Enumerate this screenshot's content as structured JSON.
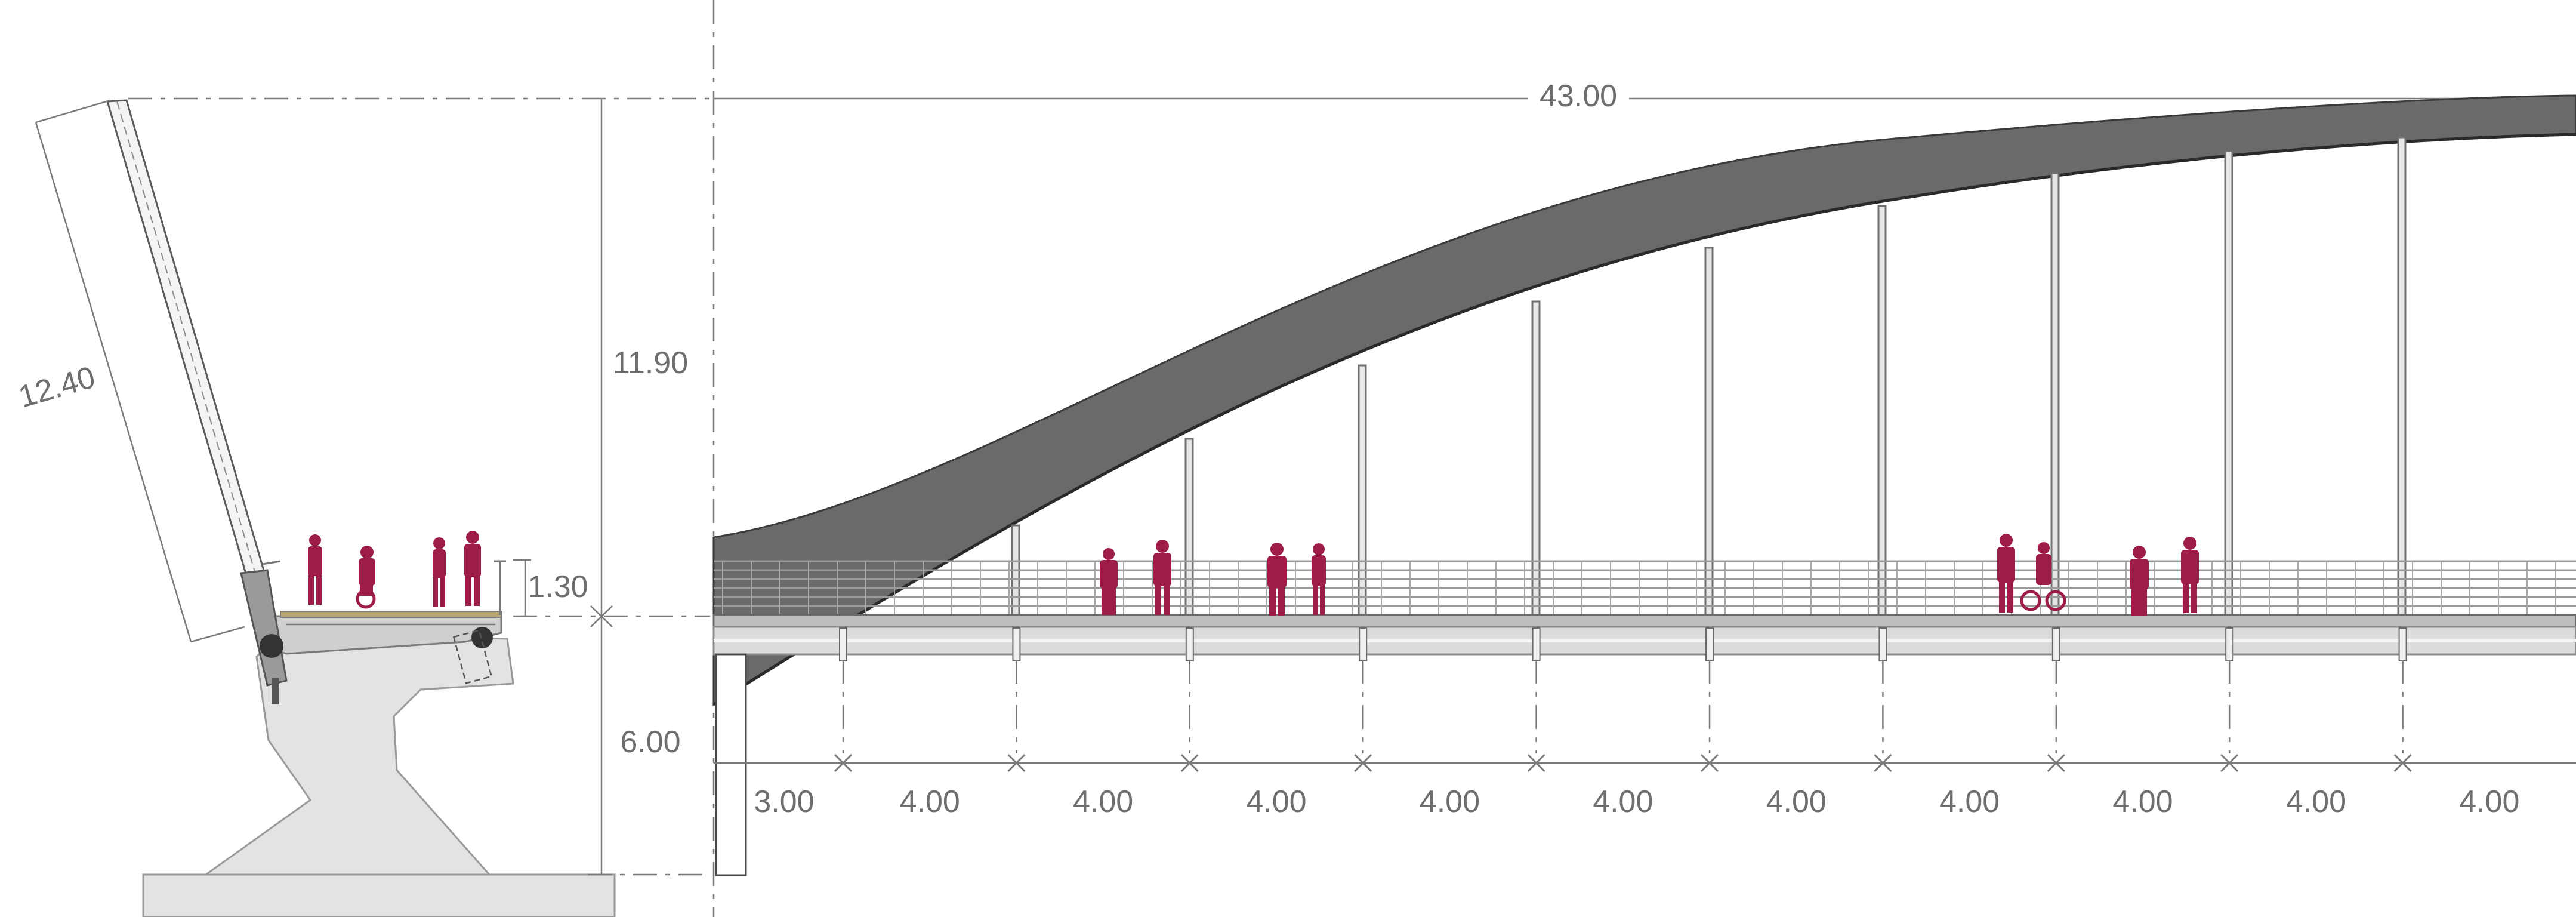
{
  "colors": {
    "arch": "#6a6a6a",
    "people": "#9e1c4a",
    "deck": "#d8d8d8",
    "abutment": "#e3e3e3",
    "dimension": "#7a7a7a"
  },
  "section": {
    "dims": {
      "mast_length": "12.40",
      "height_above_deck": "11.90",
      "railing_height": "1.30",
      "deck_clearance": "6.00"
    }
  },
  "elevation": {
    "span_label": "43.00",
    "first_bay": "3.00",
    "bays": [
      "4.00",
      "4.00",
      "4.00",
      "4.00",
      "4.00",
      "4.00",
      "4.00",
      "4.00",
      "4.00",
      "4.00"
    ]
  }
}
